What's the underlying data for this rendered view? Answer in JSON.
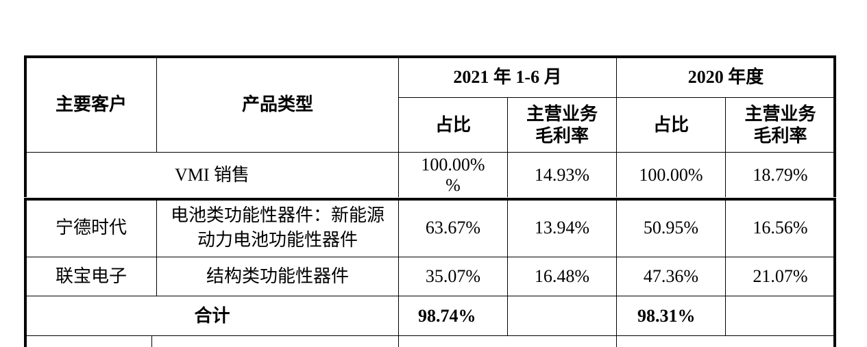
{
  "header": {
    "customer": "主要客户",
    "product_type": "产品类型",
    "period_1": "2021 年 1-6 月",
    "period_2": "2020 年度",
    "share": "占比",
    "gross_margin": "主营业务\n毛利率"
  },
  "vmi": {
    "label": "VMI 销售",
    "values": [
      "100.00%\n%",
      "14.93%",
      "100.00%",
      "18.79%"
    ]
  },
  "customers": [
    {
      "name": "宁德时代",
      "product": "电池类功能性器件：新能源动力电池功能性器件",
      "values": [
        "63.67%",
        "13.94%",
        "50.95%",
        "16.56%"
      ]
    },
    {
      "name": "联宝电子",
      "product": "结构类功能性器件",
      "values": [
        "35.07%",
        "16.48%",
        "47.36%",
        "21.07%"
      ]
    }
  ],
  "total": {
    "label": "合计",
    "share_2021": "98.74%",
    "share_2020": "98.31%"
  }
}
